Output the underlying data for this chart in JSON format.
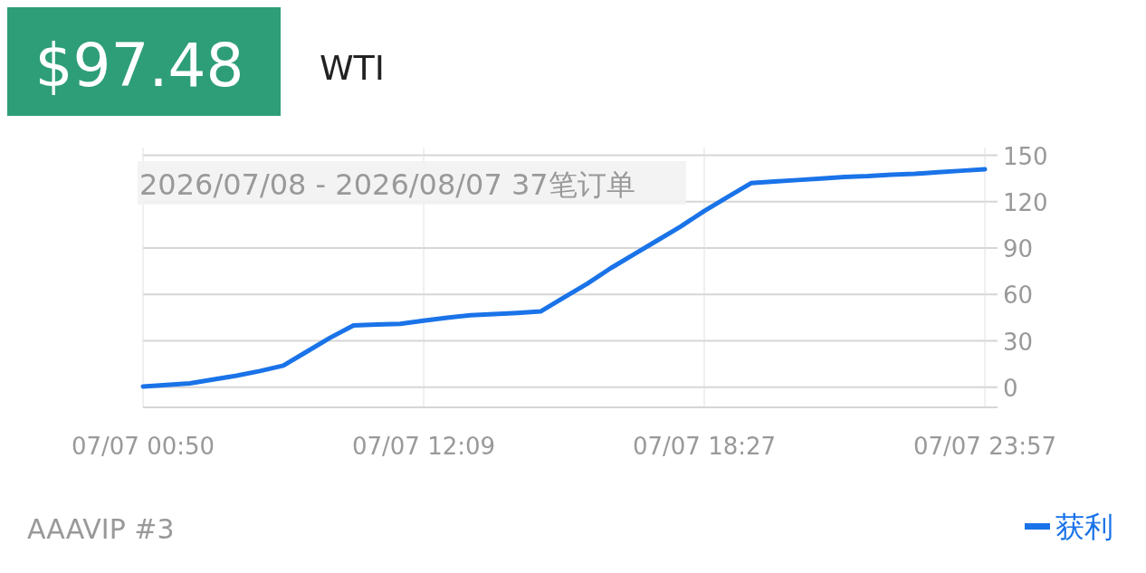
{
  "chart_data": {
    "type": "line",
    "title": "$97.48",
    "subtitle": "WTI",
    "annotations": [
      "2026/07/08 - 2026/08/07  37笔订单",
      "AAAVIP #3"
    ],
    "categories": [
      "07/07 00:50",
      null,
      null,
      null,
      null,
      null,
      null,
      null,
      null,
      null,
      null,
      null,
      "07/07 12:09",
      null,
      null,
      null,
      null,
      null,
      null,
      null,
      null,
      null,
      null,
      null,
      "07/07 18:27",
      null,
      null,
      null,
      null,
      null,
      null,
      null,
      null,
      null,
      null,
      null,
      "07/07 23:57"
    ],
    "series": [
      {
        "name": "获利",
        "color": "#1a73e8",
        "values": [
          0.5,
          1.5,
          2.5,
          5,
          7.5,
          10.5,
          14,
          23,
          32,
          40,
          40.5,
          41,
          43,
          45,
          46.5,
          47.3,
          48,
          49,
          58,
          67,
          77,
          86,
          95,
          104,
          114,
          123,
          132,
          133,
          134,
          135,
          136,
          136.5,
          137.5,
          138,
          139,
          140,
          141
        ]
      }
    ],
    "ylim": [
      -13,
      155
    ],
    "yticks": [
      0,
      30,
      60,
      90,
      120,
      150
    ],
    "grid": true,
    "legend": "bottom right",
    "marker": "none",
    "line_style": "solid"
  }
}
